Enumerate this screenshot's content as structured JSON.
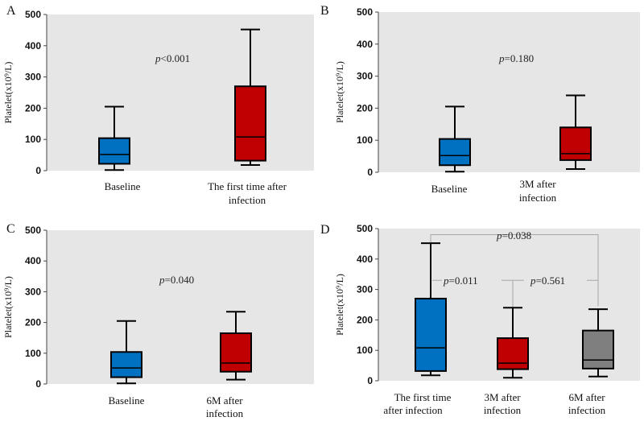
{
  "chart_data": [
    {
      "panel": "A",
      "type": "box",
      "ylabel": "Platelet(x10⁹/L)",
      "ylim": [
        0,
        500
      ],
      "yticks": [
        0,
        100,
        200,
        300,
        400,
        500
      ],
      "boxes": [
        {
          "label": [
            "Baseline"
          ],
          "min": 2,
          "q1": 22,
          "median": 52,
          "q3": 104,
          "max": 205,
          "color": "#0070C0"
        },
        {
          "label": [
            "The first time after",
            "infection"
          ],
          "min": 18,
          "q1": 32,
          "median": 108,
          "q3": 270,
          "max": 452,
          "color": "#C00000"
        }
      ],
      "annotations": [
        {
          "italic": "p",
          "text": "<0.001"
        }
      ]
    },
    {
      "panel": "B",
      "type": "box",
      "ylabel": "Platelet(x10⁹/L)",
      "ylim": [
        0,
        500
      ],
      "yticks": [
        0,
        100,
        200,
        300,
        400,
        500
      ],
      "boxes": [
        {
          "label": [
            "Baseline"
          ],
          "min": 2,
          "q1": 22,
          "median": 52,
          "q3": 104,
          "max": 205,
          "color": "#0070C0"
        },
        {
          "label": [
            "3M after",
            "infection"
          ],
          "min": 10,
          "q1": 38,
          "median": 58,
          "q3": 140,
          "max": 240,
          "color": "#C00000"
        }
      ],
      "annotations": [
        {
          "italic": "p",
          "text": "=0.180"
        }
      ]
    },
    {
      "panel": "C",
      "type": "box",
      "ylabel": "Platelet(x10⁹/L)",
      "ylim": [
        0,
        500
      ],
      "yticks": [
        0,
        100,
        200,
        300,
        400,
        500
      ],
      "boxes": [
        {
          "label": [
            "Baseline"
          ],
          "min": 2,
          "q1": 22,
          "median": 52,
          "q3": 104,
          "max": 205,
          "color": "#0070C0"
        },
        {
          "label": [
            "6M after",
            "infection"
          ],
          "min": 14,
          "q1": 40,
          "median": 68,
          "q3": 165,
          "max": 235,
          "color": "#C00000"
        }
      ],
      "annotations": [
        {
          "italic": "p",
          "text": "=0.040"
        }
      ]
    },
    {
      "panel": "D",
      "type": "box",
      "ylabel": "Platelet(x10⁹/L)",
      "ylim": [
        0,
        500
      ],
      "yticks": [
        0,
        100,
        200,
        300,
        400,
        500
      ],
      "boxes": [
        {
          "label": [
            "The first time",
            "after infection"
          ],
          "min": 18,
          "q1": 32,
          "median": 108,
          "q3": 270,
          "max": 452,
          "color": "#0070C0"
        },
        {
          "label": [
            "3M after",
            "infection"
          ],
          "min": 10,
          "q1": 38,
          "median": 58,
          "q3": 140,
          "max": 240,
          "color": "#C00000"
        },
        {
          "label": [
            "6M after",
            "infection"
          ],
          "min": 14,
          "q1": 40,
          "median": 68,
          "q3": 165,
          "max": 235,
          "color": "#7F7F7F"
        }
      ],
      "annotations": [
        {
          "italic": "p",
          "text": "=0.038",
          "between": [
            0,
            2
          ]
        },
        {
          "italic": "p",
          "text": "=0.011",
          "between": [
            0,
            1
          ]
        },
        {
          "italic": "p",
          "text": "=0.561",
          "between": [
            1,
            2
          ]
        }
      ]
    }
  ]
}
